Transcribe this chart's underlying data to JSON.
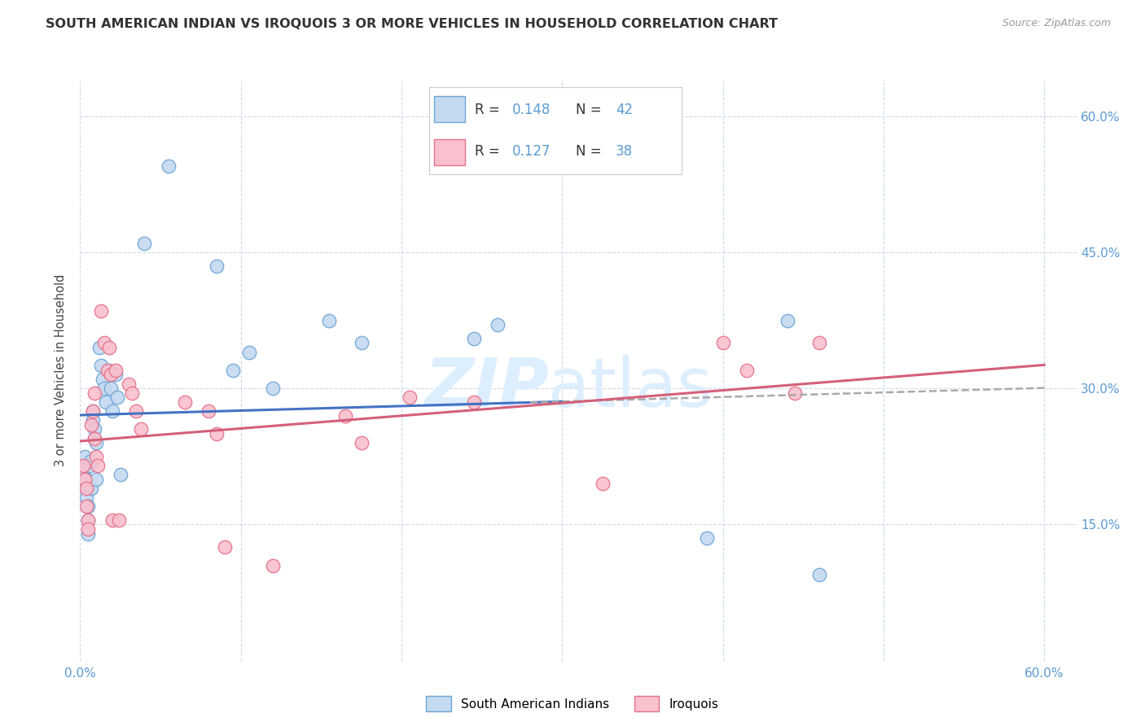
{
  "title": "SOUTH AMERICAN INDIAN VS IROQUOIS 3 OR MORE VEHICLES IN HOUSEHOLD CORRELATION CHART",
  "source": "Source: ZipAtlas.com",
  "ylabel": "3 or more Vehicles in Household",
  "xlim": [
    0.0,
    0.62
  ],
  "ylim": [
    0.0,
    0.64
  ],
  "xtick_positions": [
    0.0,
    0.1,
    0.2,
    0.3,
    0.4,
    0.5,
    0.6
  ],
  "ytick_positions": [
    0.0,
    0.15,
    0.3,
    0.45,
    0.6
  ],
  "right_ytick_labels": [
    "",
    "15.0%",
    "30.0%",
    "45.0%",
    "60.0%"
  ],
  "legend_labels_bottom": [
    "South American Indians",
    "Iroquois"
  ],
  "blue_R": "0.148",
  "blue_N": "42",
  "pink_R": "0.127",
  "pink_N": "38",
  "blue_face_color": "#c5d9f0",
  "pink_face_color": "#f9c0ce",
  "blue_edge_color": "#6ea6d8",
  "pink_edge_color": "#e8708a",
  "blue_line_color": "#4472c4",
  "pink_line_color": "#d4607a",
  "dashed_line_color": "#aaaaaa",
  "watermark_color": "#ddeeff",
  "background_color": "#ffffff",
  "grid_color": "#d0d8ea",
  "blue_x": [
    0.002,
    0.003,
    0.003,
    0.004,
    0.004,
    0.004,
    0.005,
    0.005,
    0.005,
    0.006,
    0.007,
    0.007,
    0.008,
    0.008,
    0.009,
    0.009,
    0.01,
    0.01,
    0.012,
    0.013,
    0.014,
    0.015,
    0.016,
    0.018,
    0.019,
    0.02,
    0.022,
    0.023,
    0.025,
    0.04,
    0.055,
    0.085,
    0.095,
    0.105,
    0.12,
    0.155,
    0.175,
    0.245,
    0.26,
    0.39,
    0.44,
    0.46
  ],
  "blue_y": [
    0.205,
    0.215,
    0.225,
    0.2,
    0.19,
    0.18,
    0.17,
    0.155,
    0.14,
    0.215,
    0.22,
    0.19,
    0.275,
    0.265,
    0.255,
    0.245,
    0.24,
    0.2,
    0.345,
    0.325,
    0.31,
    0.3,
    0.285,
    0.32,
    0.3,
    0.275,
    0.315,
    0.29,
    0.205,
    0.46,
    0.545,
    0.435,
    0.32,
    0.34,
    0.3,
    0.375,
    0.35,
    0.355,
    0.37,
    0.135,
    0.375,
    0.095
  ],
  "pink_x": [
    0.002,
    0.003,
    0.004,
    0.004,
    0.005,
    0.005,
    0.007,
    0.008,
    0.009,
    0.009,
    0.01,
    0.011,
    0.013,
    0.015,
    0.017,
    0.018,
    0.019,
    0.02,
    0.022,
    0.024,
    0.03,
    0.032,
    0.035,
    0.038,
    0.065,
    0.08,
    0.085,
    0.09,
    0.12,
    0.165,
    0.175,
    0.205,
    0.245,
    0.325,
    0.4,
    0.415,
    0.445,
    0.46
  ],
  "pink_y": [
    0.215,
    0.2,
    0.19,
    0.17,
    0.155,
    0.145,
    0.26,
    0.275,
    0.295,
    0.245,
    0.225,
    0.215,
    0.385,
    0.35,
    0.32,
    0.345,
    0.315,
    0.155,
    0.32,
    0.155,
    0.305,
    0.295,
    0.275,
    0.255,
    0.285,
    0.275,
    0.25,
    0.125,
    0.105,
    0.27,
    0.24,
    0.29,
    0.285,
    0.195,
    0.35,
    0.32,
    0.295,
    0.35
  ]
}
